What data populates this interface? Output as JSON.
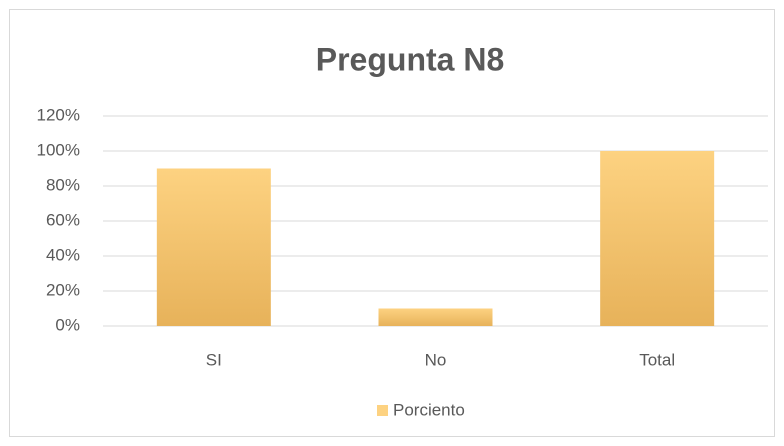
{
  "chart_data": {
    "type": "bar",
    "title": "Pregunta N8",
    "categories": [
      "SI",
      "No",
      "Total"
    ],
    "values": [
      90,
      10,
      100
    ],
    "series_name": "Porciento",
    "color": "#fdd281",
    "ylim": [
      0,
      120
    ],
    "yticks": [
      {
        "value": 0,
        "label": "0%"
      },
      {
        "value": 20,
        "label": "20%"
      },
      {
        "value": 40,
        "label": "40%"
      },
      {
        "value": 60,
        "label": "60%"
      },
      {
        "value": 80,
        "label": "80%"
      },
      {
        "value": 100,
        "label": "100%"
      },
      {
        "value": 120,
        "label": "120%"
      }
    ],
    "grid": true,
    "legend": "bottom"
  }
}
